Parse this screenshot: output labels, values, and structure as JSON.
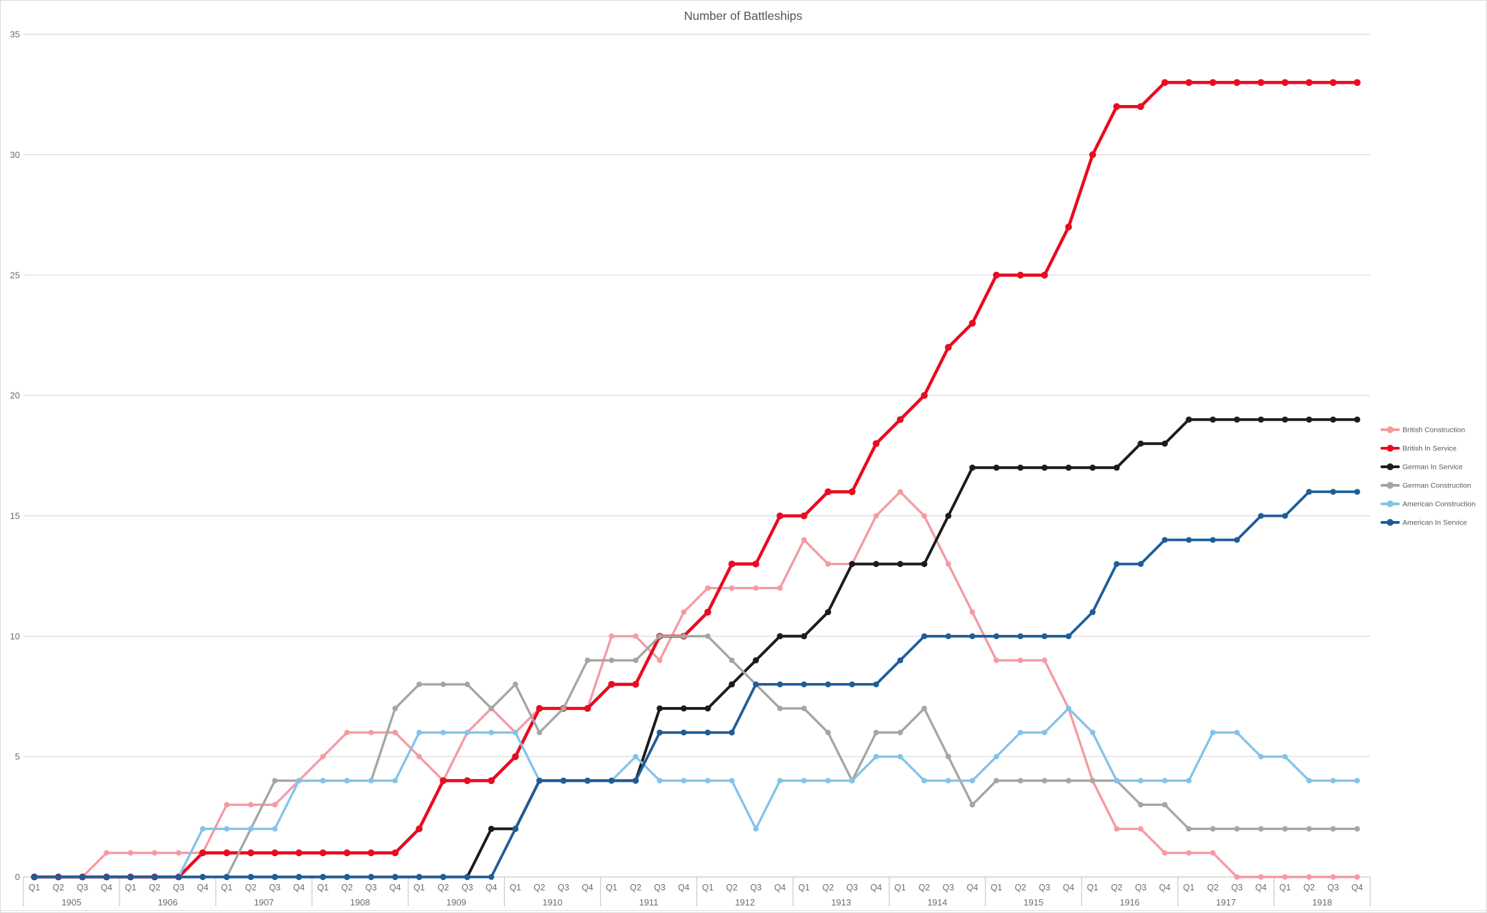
{
  "title": "Number of Battleships",
  "y_axis": {
    "tick_labels": [
      0,
      5,
      10,
      15,
      20,
      25,
      30,
      35
    ]
  },
  "x_axis": {
    "quarter_labels": [
      "Q1",
      "Q2",
      "Q3",
      "Q4"
    ],
    "year_labels": [
      "1905",
      "1906",
      "1907",
      "1908",
      "1909",
      "1910",
      "1911",
      "1912",
      "1913",
      "1914",
      "1915",
      "1916",
      "1917",
      "1918"
    ]
  },
  "legend": {
    "position": "right",
    "items": [
      "British Construction",
      "British In Service",
      "German In Service",
      "German Construction",
      "American Construction",
      "American In Service"
    ]
  },
  "colors": {
    "british_construction": "#F59AA3",
    "british_in_service": "#EA0B1F",
    "german_in_service": "#1C1C1C",
    "german_construction": "#A5A5A5",
    "american_construction": "#84C3E8",
    "american_in_service": "#1F5D99",
    "gridline": "#DCDCDC",
    "axis_band_line": "#C9C9C9",
    "title_text": "#555555",
    "axis_text": "#6B6B6B",
    "legend_text": "#595959"
  },
  "chart_data": {
    "type": "line",
    "title": "Number of Battleships",
    "xlabel": "",
    "ylabel": "",
    "ylim": [
      0,
      35
    ],
    "y_ticks": [
      0,
      5,
      10,
      15,
      20,
      25,
      30,
      35
    ],
    "grid": true,
    "legend_position": "right",
    "x_structure": {
      "years": [
        "1905",
        "1906",
        "1907",
        "1908",
        "1909",
        "1910",
        "1911",
        "1912",
        "1913",
        "1914",
        "1915",
        "1916",
        "1917",
        "1918"
      ],
      "quarters_per_year": [
        "Q1",
        "Q2",
        "Q3",
        "Q4"
      ]
    },
    "series": [
      {
        "name": "British Construction",
        "color": "#F59AA3",
        "values": [
          0,
          0,
          0,
          1,
          1,
          1,
          1,
          1,
          3,
          3,
          3,
          4,
          5,
          6,
          6,
          6,
          5,
          4,
          6,
          7,
          6,
          7,
          7,
          7,
          10,
          10,
          9,
          11,
          12,
          12,
          12,
          12,
          14,
          13,
          13,
          15,
          16,
          15,
          13,
          11,
          9,
          9,
          9,
          7,
          4,
          2,
          2,
          1,
          1,
          1,
          0,
          0,
          0,
          0,
          0,
          0
        ]
      },
      {
        "name": "British In Service",
        "color": "#EA0B1F",
        "values": [
          0,
          0,
          0,
          0,
          0,
          0,
          0,
          1,
          1,
          1,
          1,
          1,
          1,
          1,
          1,
          1,
          2,
          4,
          4,
          4,
          5,
          7,
          7,
          7,
          8,
          8,
          10,
          10,
          11,
          13,
          13,
          15,
          15,
          16,
          16,
          18,
          19,
          20,
          22,
          23,
          25,
          25,
          25,
          27,
          30,
          32,
          32,
          33,
          33,
          33,
          33,
          33,
          33,
          33,
          33,
          33
        ]
      },
      {
        "name": "German In Service",
        "color": "#1C1C1C",
        "values": [
          0,
          0,
          0,
          0,
          0,
          0,
          0,
          0,
          0,
          0,
          0,
          0,
          0,
          0,
          0,
          0,
          0,
          0,
          0,
          2,
          2,
          4,
          4,
          4,
          4,
          4,
          7,
          7,
          7,
          8,
          9,
          10,
          10,
          11,
          13,
          13,
          13,
          13,
          15,
          17,
          17,
          17,
          17,
          17,
          17,
          17,
          18,
          18,
          19,
          19,
          19,
          19,
          19,
          19,
          19,
          19
        ]
      },
      {
        "name": "German Construction",
        "color": "#A5A5A5",
        "values": [
          0,
          0,
          0,
          0,
          0,
          0,
          0,
          0,
          0,
          2,
          4,
          4,
          4,
          4,
          4,
          7,
          8,
          8,
          8,
          7,
          8,
          6,
          7,
          9,
          9,
          9,
          10,
          10,
          10,
          9,
          8,
          7,
          7,
          6,
          4,
          6,
          6,
          7,
          5,
          3,
          4,
          4,
          4,
          4,
          4,
          4,
          3,
          3,
          2,
          2,
          2,
          2,
          2,
          2,
          2,
          2
        ]
      },
      {
        "name": "American Construction",
        "color": "#84C3E8",
        "values": [
          0,
          0,
          0,
          0,
          0,
          0,
          0,
          2,
          2,
          2,
          2,
          4,
          4,
          4,
          4,
          4,
          6,
          6,
          6,
          6,
          6,
          4,
          4,
          4,
          4,
          5,
          4,
          4,
          4,
          4,
          2,
          4,
          4,
          4,
          4,
          5,
          5,
          4,
          4,
          4,
          5,
          6,
          6,
          7,
          6,
          4,
          4,
          4,
          4,
          6,
          6,
          5,
          5,
          4,
          4,
          4
        ]
      },
      {
        "name": "American In Service",
        "color": "#1F5D99",
        "values": [
          0,
          0,
          0,
          0,
          0,
          0,
          0,
          0,
          0,
          0,
          0,
          0,
          0,
          0,
          0,
          0,
          0,
          0,
          0,
          0,
          2,
          4,
          4,
          4,
          4,
          4,
          6,
          6,
          6,
          6,
          8,
          8,
          8,
          8,
          8,
          8,
          9,
          10,
          10,
          10,
          10,
          10,
          10,
          10,
          11,
          13,
          13,
          14,
          14,
          14,
          14,
          15,
          15,
          16,
          16,
          16
        ]
      }
    ]
  }
}
